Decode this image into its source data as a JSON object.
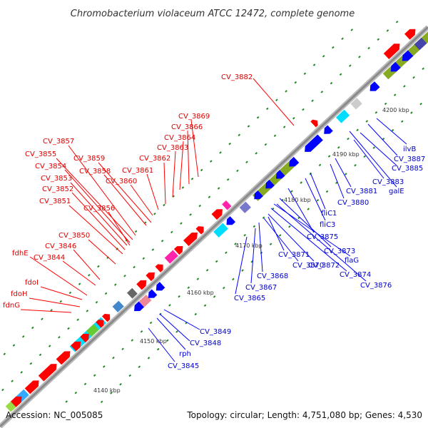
{
  "title": "Chromobacterium violaceum ATCC 12472, complete genome",
  "footer": {
    "accession": "Accession: NC_005085",
    "summary": "Topology: circular; Length: 4,751,080 bp; Genes: 4,530"
  },
  "ticks": [
    "4140 kbp",
    "4150 kbp",
    "4160 kbp",
    "4170 kbp",
    "4180 kbp",
    "4190 kbp",
    "4200 kbp"
  ],
  "colors": {
    "forward_feature": "#ff0000",
    "reverse_feature": "#0000ff",
    "backbone": "#999999"
  },
  "labels_red": [
    "CV_3882",
    "CV_3869",
    "CV_3866",
    "CV_3864",
    "CV_3863",
    "CV_3862",
    "CV_3861",
    "CV_3860",
    "CV_3859",
    "CV_3858",
    "CV_3857",
    "CV_3855",
    "CV_3854",
    "CV_3853",
    "CV_3852",
    "CV_3851",
    "CV_3856",
    "CV_3850",
    "CV_3846",
    "fdhE",
    "CV_3844",
    "fdoI",
    "fdoH",
    "fdnG"
  ],
  "labels_blue": [
    "ilvB",
    "CV_3887",
    "CV_3885",
    "CV_3883",
    "galE",
    "CV_3881",
    "CV_3880",
    "fliC1",
    "fliC3",
    "CV_3875",
    "CV_3873",
    "flaG",
    "CV_3874",
    "CV_3876",
    "CV_3872",
    "CV_3870",
    "CV_3871",
    "CV_3868",
    "CV_3867",
    "CV_3865",
    "CV_3849",
    "CV_3848",
    "rph",
    "CV_3845"
  ]
}
